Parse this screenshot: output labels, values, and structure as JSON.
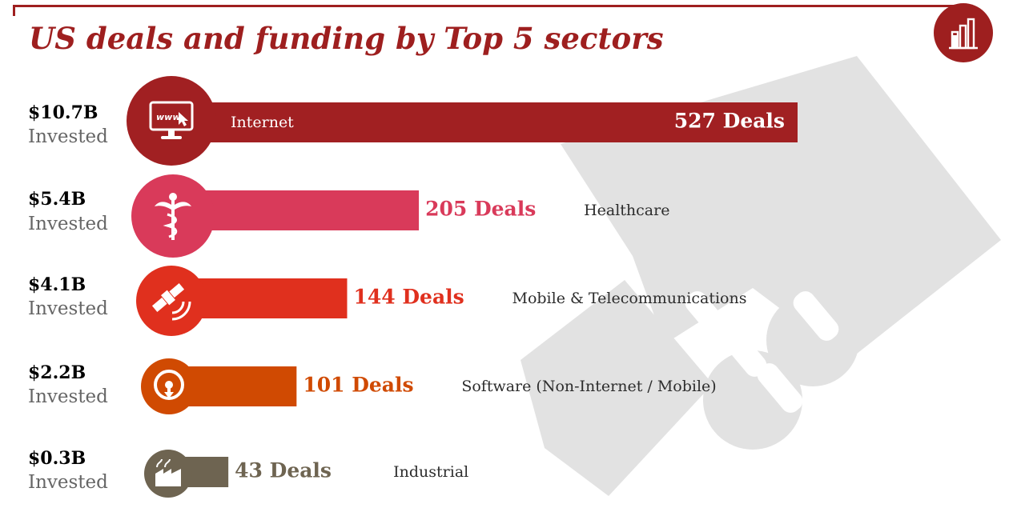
{
  "title": "US deals and funding by Top 5 sectors",
  "invested_label": "Invested",
  "colors": {
    "title": "#9e1f1f",
    "internet": "#a12022",
    "healthcare": "#d93a5a",
    "mobile": "#e0301e",
    "software": "#d04a02",
    "industrial": "#6e6451",
    "watermark": "#e2e2e2",
    "sector_text": "#2d2d2d"
  },
  "icons": {
    "corner": "factory-chart-icon",
    "internet": "monitor-www-icon",
    "healthcare": "caduceus-icon",
    "mobile": "satellite-icon",
    "software": "disc-download-icon",
    "industrial": "factory-icon",
    "watermark": "handshake-icon"
  },
  "chart_data": {
    "type": "bar",
    "orientation": "horizontal",
    "title": "US deals and funding by Top 5 sectors",
    "categories": [
      "Internet",
      "Healthcare",
      "Mobile & Telecommunications",
      "Software (Non-Internet / Mobile)",
      "Industrial"
    ],
    "series": [
      {
        "name": "Deals",
        "values": [
          527,
          205,
          144,
          101,
          43
        ]
      },
      {
        "name": "Invested ($B)",
        "values": [
          10.7,
          5.4,
          4.1,
          2.2,
          0.3
        ]
      }
    ],
    "deal_labels": [
      "527 Deals",
      "205 Deals",
      "144 Deals",
      "101 Deals",
      "43 Deals"
    ],
    "amount_labels": [
      "$10.7B",
      "$5.4B",
      "$4.1B",
      "$2.2B",
      "$0.3B"
    ],
    "xlim": [
      0,
      527
    ]
  }
}
